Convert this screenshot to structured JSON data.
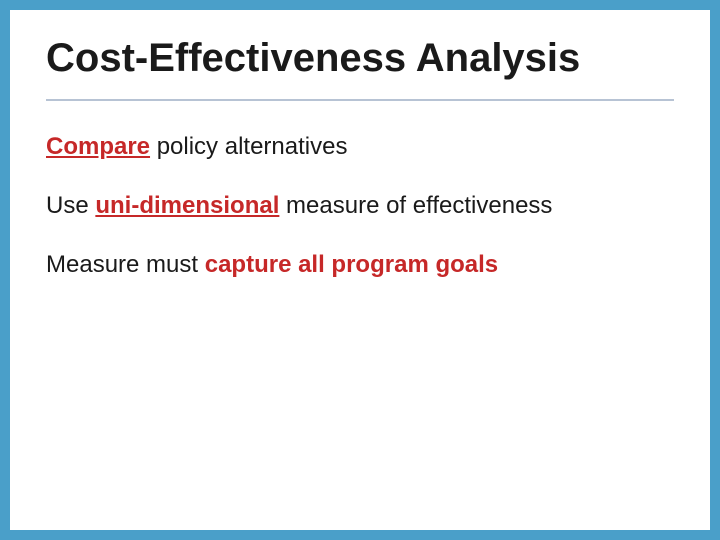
{
  "slide": {
    "title": "Cost-Effectiveness Analysis",
    "border_color": "#4a9fc9",
    "background_color": "#ffffff",
    "underline_color": "#b7c3d4",
    "title_color": "#1a1a1a",
    "title_fontsize": 40,
    "body_fontsize": 24,
    "lines": [
      {
        "parts": [
          {
            "text": "Compare",
            "bold": true,
            "underline": true,
            "color": "#c62828"
          },
          {
            "text": " policy alternatives",
            "bold": false,
            "underline": false,
            "color": "#1a1a1a"
          }
        ]
      },
      {
        "parts": [
          {
            "text": "Use ",
            "bold": false,
            "underline": false,
            "color": "#1a1a1a"
          },
          {
            "text": "uni-dimensional",
            "bold": true,
            "underline": true,
            "color": "#c62828"
          },
          {
            "text": " measure of effectiveness",
            "bold": false,
            "underline": false,
            "color": "#1a1a1a"
          }
        ]
      },
      {
        "parts": [
          {
            "text": "Measure must ",
            "bold": false,
            "underline": false,
            "color": "#1a1a1a"
          },
          {
            "text": "capture all program goals",
            "bold": true,
            "underline": false,
            "color": "#c62828"
          }
        ]
      }
    ]
  }
}
